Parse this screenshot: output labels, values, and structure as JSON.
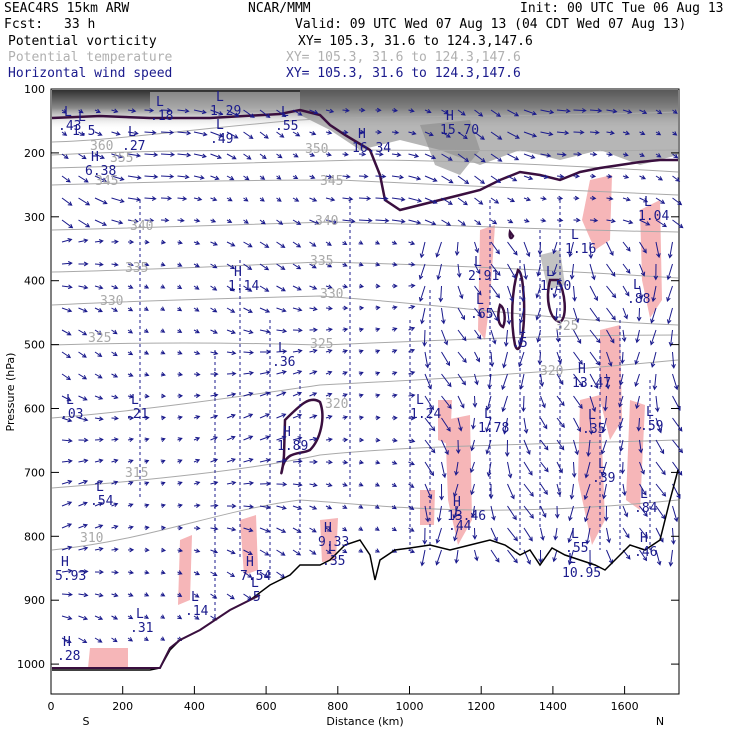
{
  "header": {
    "model": "SEAC4RS 15km ARW",
    "forecast_label": "Fcst:",
    "forecast_value": "33 h",
    "center": "NCAR/MMM",
    "init": "Init: 00 UTC Tue 06 Aug 13",
    "valid": "Valid: 09 UTC Wed 07 Aug 13 (04 CDT Wed 07 Aug 13)"
  },
  "fields": [
    {
      "name": "Potential vorticity",
      "xy": "XY= 105.3, 31.6 to 124.3,147.6",
      "color": "#000000"
    },
    {
      "name": "Potential temperature",
      "xy": "XY= 105.3, 31.6 to 124.3,147.6",
      "color": "#b0b0b0"
    },
    {
      "name": "Horizontal wind speed",
      "xy": "XY= 105.3, 31.6 to 124.3,147.6",
      "color": "#1a1a8c"
    }
  ],
  "axes": {
    "ylabel": "Pressure (hPa)",
    "yticks": [
      "100",
      "200",
      "300",
      "400",
      "500",
      "600",
      "700",
      "800",
      "900",
      "1000"
    ],
    "xlabel": "Distance (km)",
    "xticks": [
      "0",
      "200",
      "400",
      "600",
      "800",
      "1000",
      "1200",
      "1400",
      "1600"
    ],
    "left_end": "S",
    "right_end": "N"
  },
  "theta_labels": [
    "360",
    "355",
    "350",
    "345",
    "340",
    "335",
    "330",
    "325",
    "320",
    "315",
    "310"
  ],
  "extrema": [
    {
      "m": "L",
      "v": "1.5"
    },
    {
      "m": "L",
      "v": ".18"
    },
    {
      "m": "L",
      "v": "1.29"
    },
    {
      "m": "L",
      "v": ".49"
    },
    {
      "m": "L",
      "v": ".55"
    },
    {
      "m": "H",
      "v": "16.34"
    },
    {
      "m": "H",
      "v": "15.70"
    },
    {
      "m": "L",
      "v": ".43"
    },
    {
      "m": "L",
      "v": ".27"
    },
    {
      "m": "H",
      "v": "6.38"
    },
    {
      "m": "L",
      "v": "1.16"
    },
    {
      "m": "L",
      "v": "1.04"
    },
    {
      "m": "L",
      "v": "2.91"
    },
    {
      "m": "L",
      "v": "1.50"
    },
    {
      "m": "H",
      "v": "1.14"
    },
    {
      "m": "L",
      "v": ".65"
    },
    {
      "m": "L",
      "v": ".88"
    },
    {
      "m": "L",
      "v": ".36"
    },
    {
      "m": "L",
      "v": ".5"
    },
    {
      "m": "H",
      "v": "13.47"
    },
    {
      "m": "L",
      "v": ".03"
    },
    {
      "m": "L",
      "v": ".21"
    },
    {
      "m": "L",
      "v": "1.24"
    },
    {
      "m": "L",
      "v": "1.78"
    },
    {
      "m": "L",
      "v": ".35"
    },
    {
      "m": "L",
      "v": ".59"
    },
    {
      "m": "H",
      "v": "1.89"
    },
    {
      "m": "L",
      "v": ".39"
    },
    {
      "m": "L",
      "v": ".54"
    },
    {
      "m": "H",
      "v": "13.46"
    },
    {
      "m": "L",
      "v": ".44"
    },
    {
      "m": "L",
      "v": ".84"
    },
    {
      "m": "H",
      "v": "9.33"
    },
    {
      "m": "L",
      "v": ".35"
    },
    {
      "m": "L",
      "v": ".55"
    },
    {
      "m": "H",
      "v": ".46"
    },
    {
      "m": "H",
      "v": "5.93"
    },
    {
      "m": "H",
      "v": "7.54"
    },
    {
      "m": "L",
      "v": ".5"
    },
    {
      "m": "L",
      "v": "10.95"
    },
    {
      "m": "L",
      "v": ".14"
    },
    {
      "m": "L",
      "v": ".31"
    },
    {
      "m": "H",
      "v": ".28"
    }
  ]
}
